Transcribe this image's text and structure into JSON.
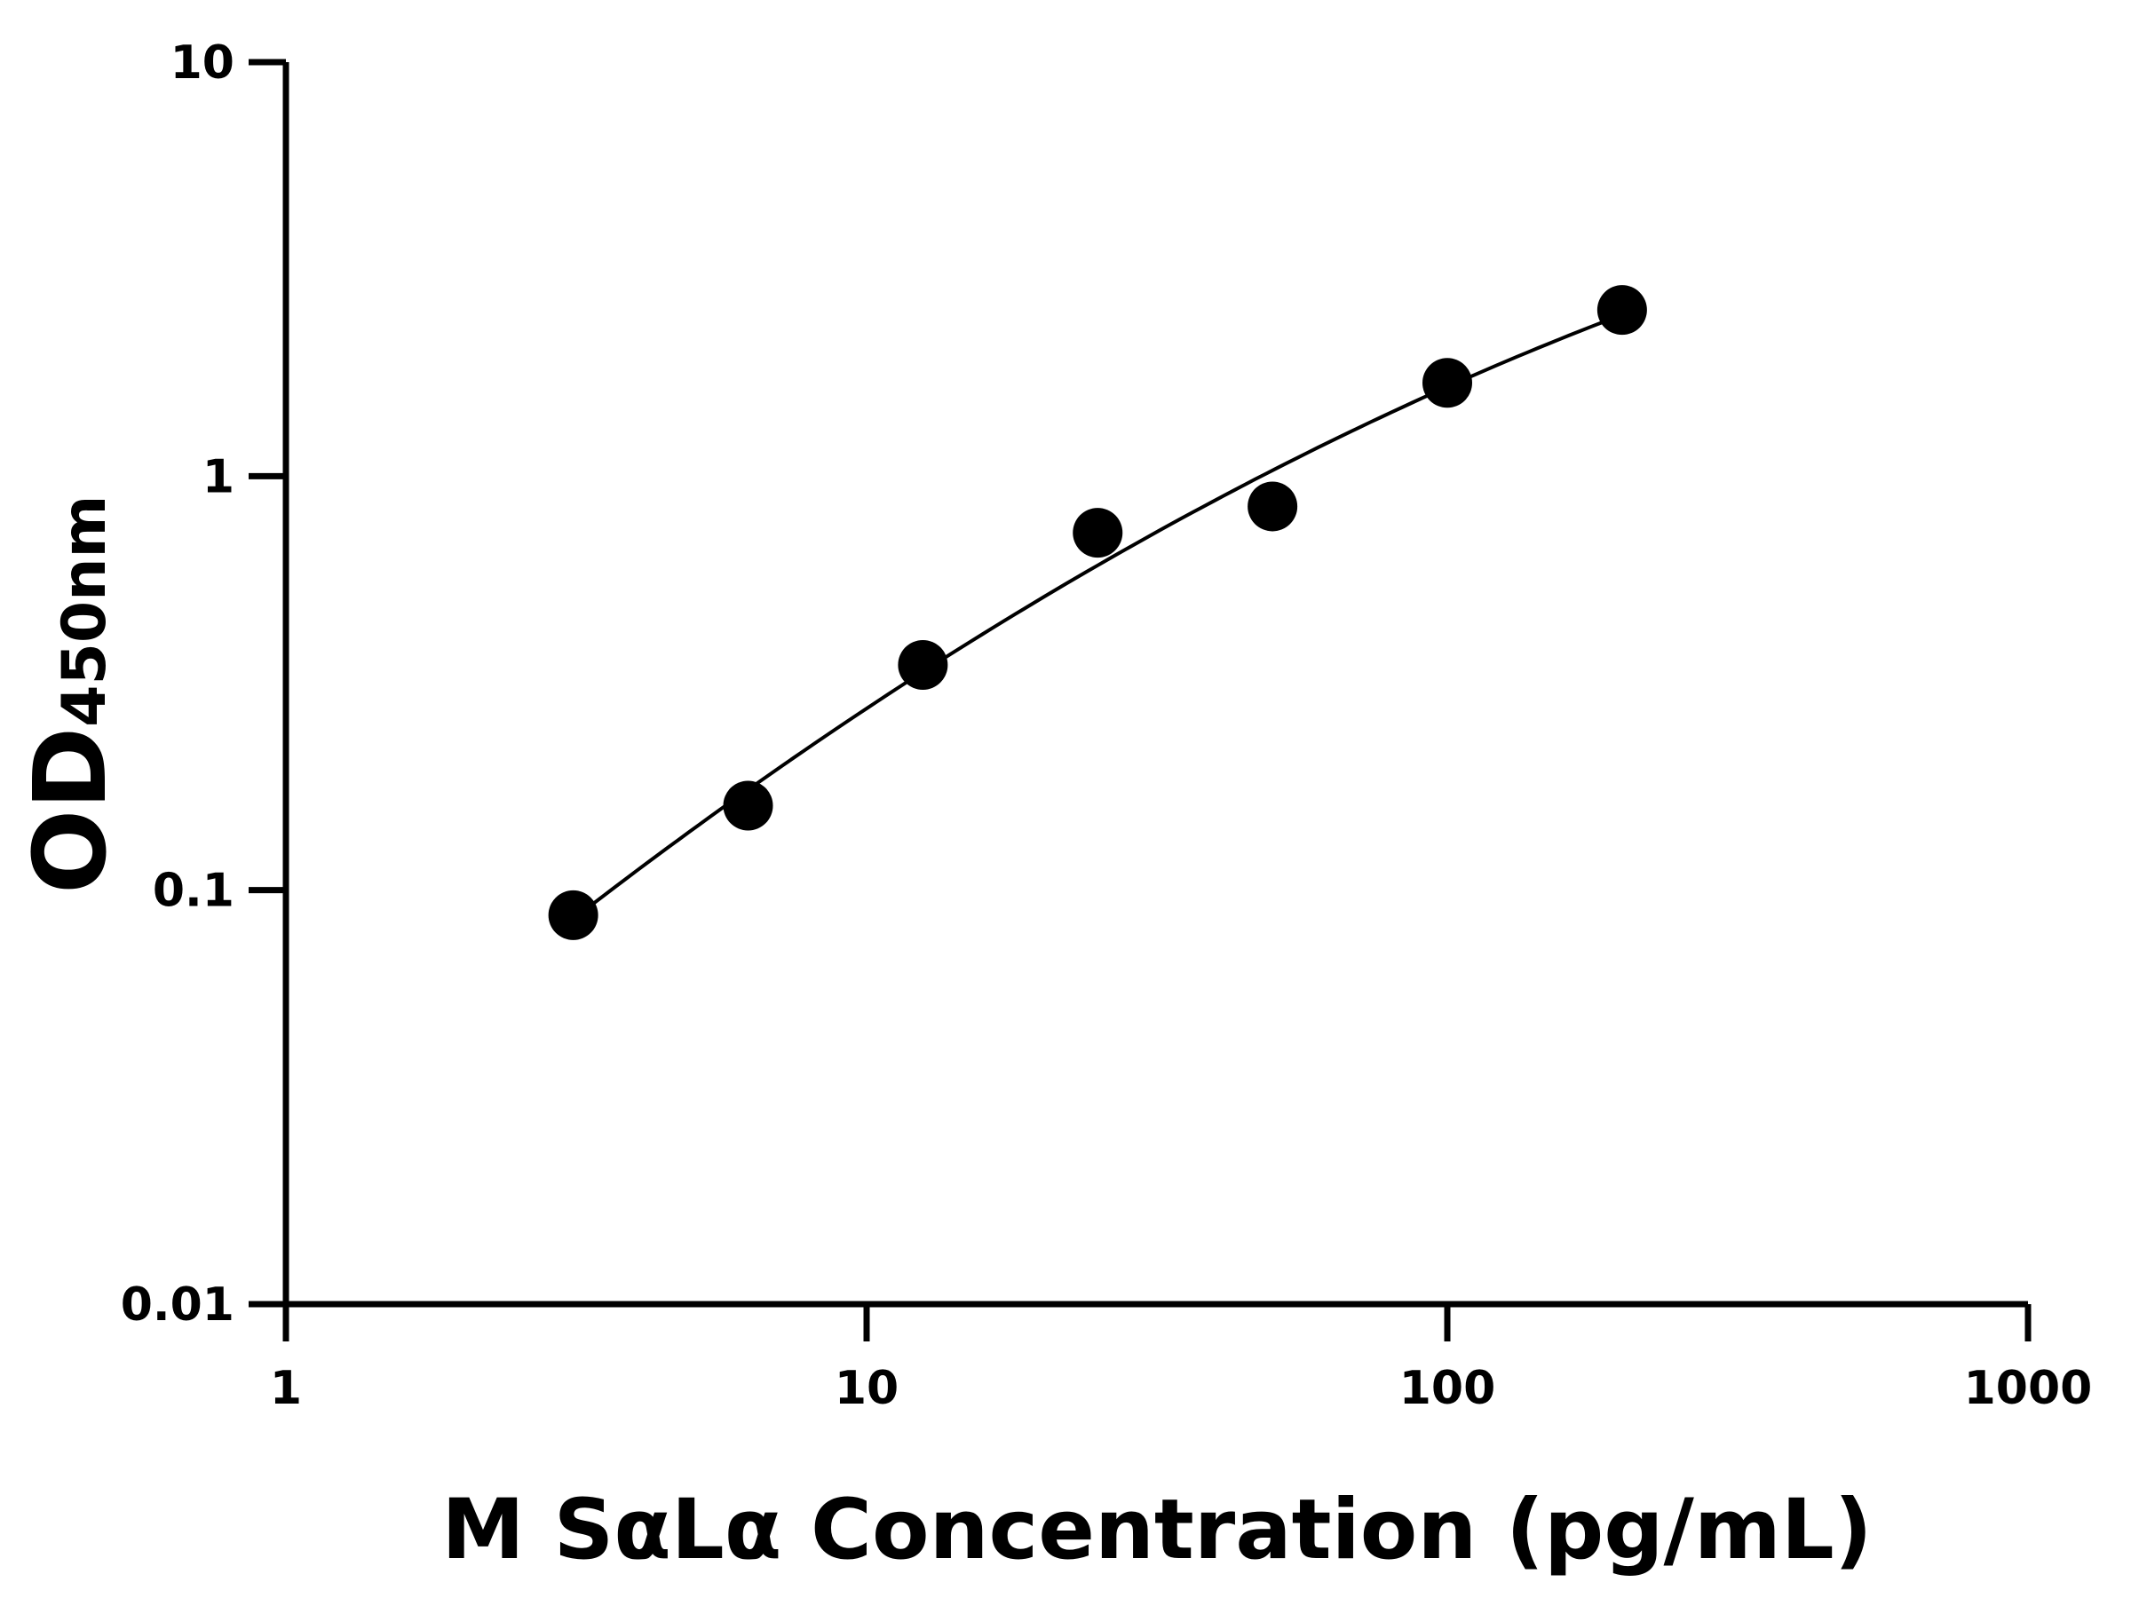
{
  "chart_data": {
    "type": "scatter",
    "xlabel": "M SαLα Concentration (pg/mL)",
    "ylabel": "OD",
    "ylabel_subscript": "450nm",
    "x_scale": "log",
    "y_scale": "log",
    "xlim": [
      1,
      1000
    ],
    "ylim": [
      0.01,
      10
    ],
    "x_ticks": [
      "1",
      "10",
      "100",
      "1000"
    ],
    "y_ticks": [
      "0.01",
      "0.1",
      "1",
      "10"
    ],
    "grid": false,
    "series": [
      {
        "x": [
          3.125,
          6.25,
          12.5,
          25,
          50,
          100,
          200
        ],
        "y": [
          0.087,
          0.16,
          0.35,
          0.73,
          0.845,
          1.68,
          2.52
        ],
        "color": "#000000",
        "fit_curve": true
      }
    ]
  }
}
